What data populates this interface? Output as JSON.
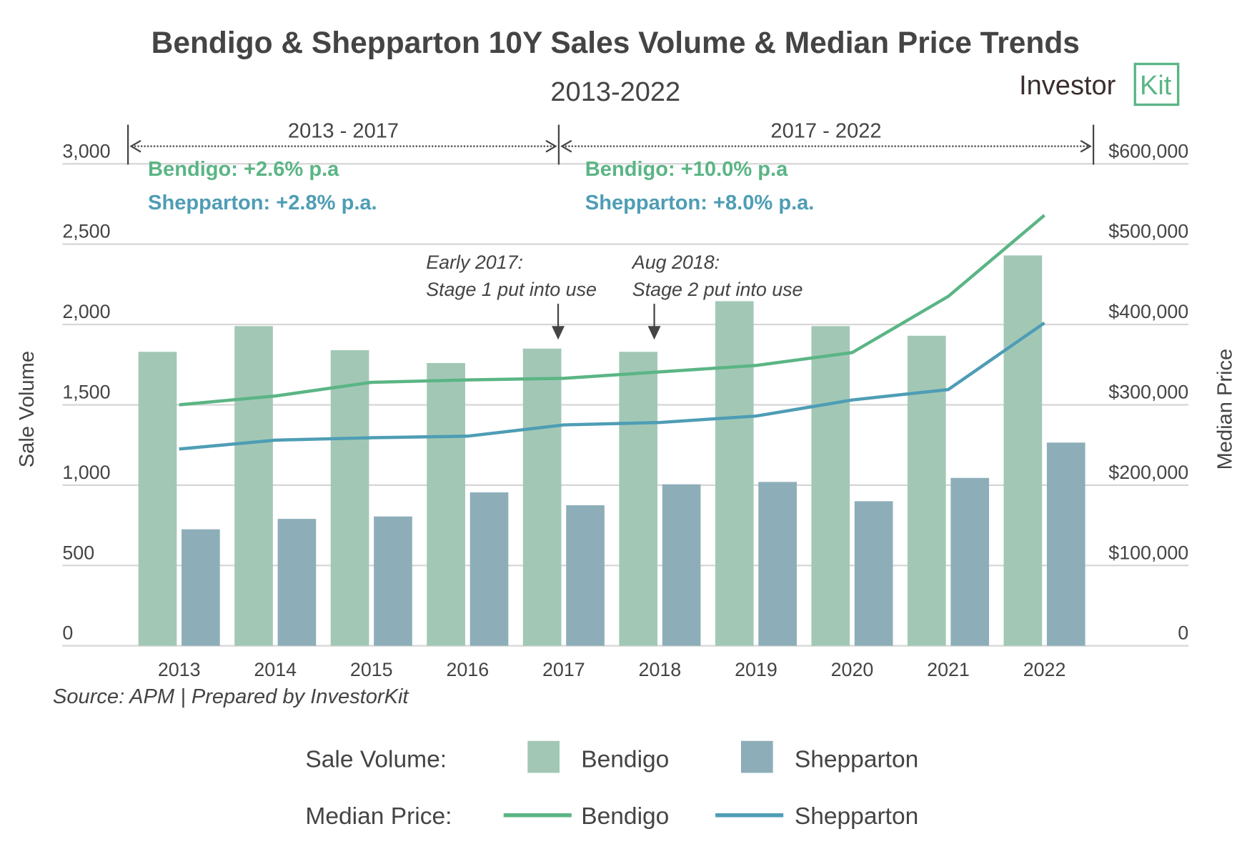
{
  "chart_data": {
    "type": "bar",
    "title": "Bendigo & Shepparton 10Y Sales Volume & Median Price Trends",
    "subtitle": "2013-2022",
    "logo": "InvestorKit",
    "categories": [
      "2013",
      "2014",
      "2015",
      "2016",
      "2017",
      "2018",
      "2019",
      "2020",
      "2021",
      "2022"
    ],
    "ylabel": "Sale Volume",
    "y2label": "Median Price",
    "ylim": [
      0,
      3000
    ],
    "y2lim": [
      0,
      600000
    ],
    "yticks": [
      "0",
      "500",
      "1,000",
      "1,500",
      "2,000",
      "2,500",
      "3,000"
    ],
    "y2ticks": [
      "0",
      "$100,000",
      "$200,000",
      "$300,000",
      "$400,000",
      "$500,000",
      "$600,000"
    ],
    "grid": true,
    "series": [
      {
        "name": "Bendigo",
        "kind": "bar",
        "axis": "left",
        "color": "#a2c8b5",
        "values": [
          1830,
          1990,
          1840,
          1760,
          1850,
          1830,
          2145,
          1990,
          1930,
          2430
        ]
      },
      {
        "name": "Shepparton",
        "kind": "bar",
        "axis": "left",
        "color": "#8daeb9",
        "values": [
          725,
          790,
          805,
          955,
          875,
          1005,
          1020,
          900,
          1045,
          1265
        ]
      },
      {
        "name": "Bendigo",
        "kind": "line",
        "axis": "right",
        "color": "#5bb585",
        "values": [
          300000,
          311000,
          328000,
          331000,
          333000,
          341000,
          349000,
          365000,
          435000,
          536000
        ]
      },
      {
        "name": "Shepparton",
        "kind": "line",
        "axis": "right",
        "color": "#4e9db5",
        "values": [
          245000,
          256000,
          259000,
          261000,
          275000,
          278000,
          286000,
          306000,
          319000,
          402000
        ]
      }
    ],
    "periods": [
      {
        "label": "2013 - 2017",
        "bendigo": "Bendigo: +2.6% p.a",
        "shepparton": "Shepparton: +2.8% p.a."
      },
      {
        "label": "2017 - 2022",
        "bendigo": "Bendigo: +10.0% p.a",
        "shepparton": "Shepparton: +8.0% p.a."
      }
    ],
    "annotations": [
      {
        "year": "2017",
        "line1": "Early 2017:",
        "line2": "Stage 1 put into use"
      },
      {
        "year": "2018",
        "line1": "Aug 2018:",
        "line2": "Stage 2 put into use"
      }
    ],
    "source": "Source:  APM | Prepared by InvestorKit",
    "legend": {
      "placement": "bottom",
      "volume_label": "Sale Volume:",
      "price_label": "Median Price:",
      "bendigo": "Bendigo",
      "shepparton": "Shepparton"
    },
    "text_color": "#444444"
  }
}
